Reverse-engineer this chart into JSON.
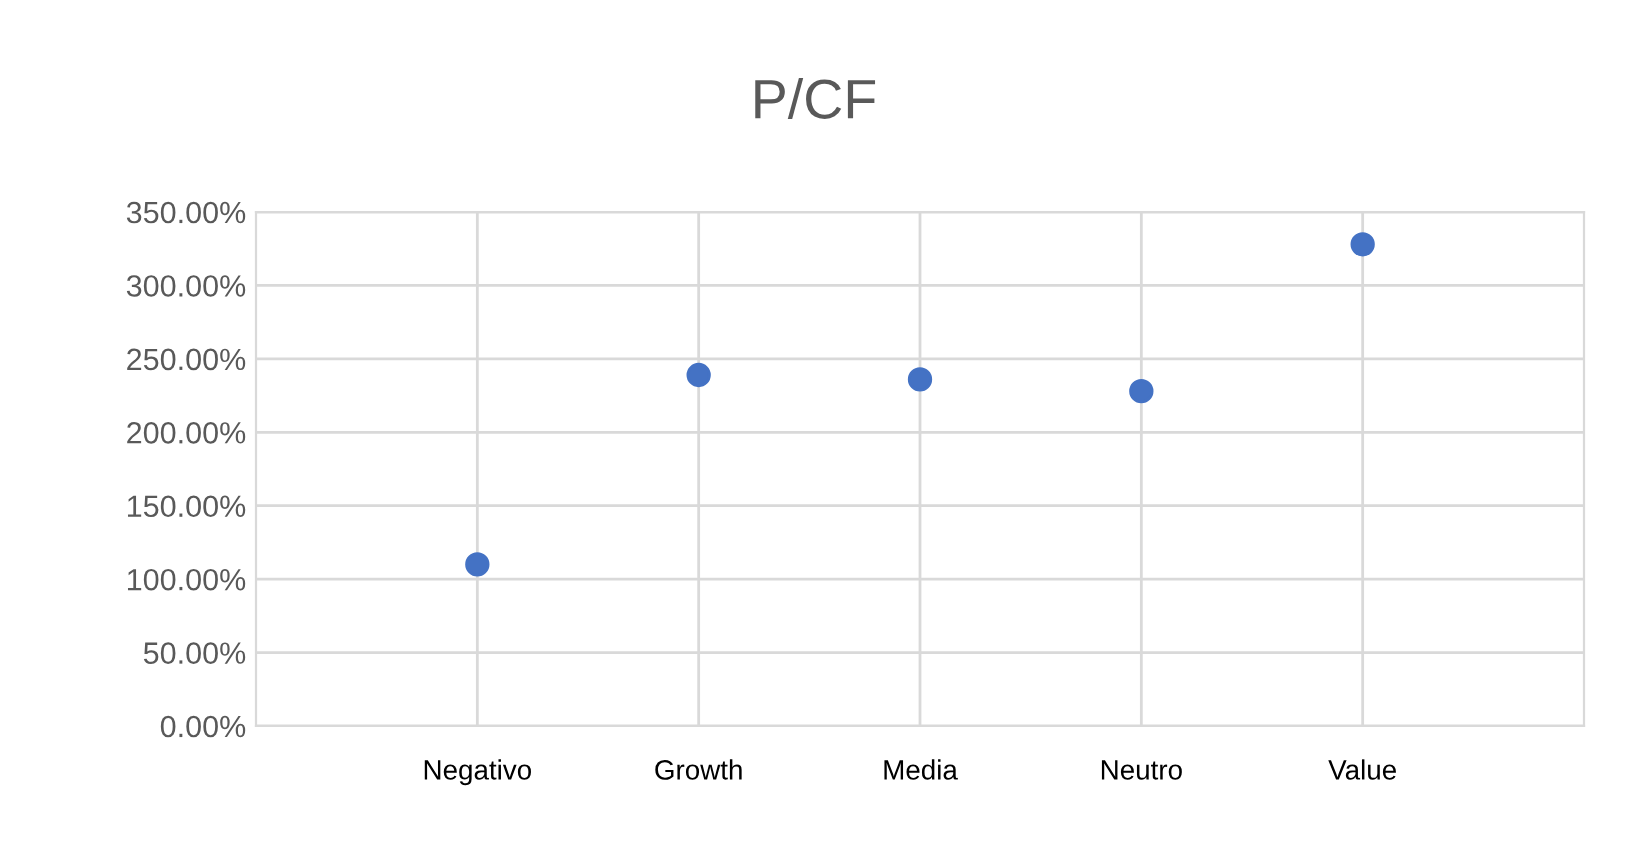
{
  "chart_data": {
    "type": "scatter",
    "title": "P/CF",
    "categories": [
      "Negativo",
      "Growth",
      "Media",
      "Neutro",
      "Value"
    ],
    "values": [
      110,
      239,
      236,
      228,
      328
    ],
    "color": "#4472c4",
    "marker": "circle",
    "grid": true,
    "legend": false,
    "ylim": [
      0,
      350
    ],
    "yticks": [
      {
        "value": 0,
        "label": "0.00%"
      },
      {
        "value": 50,
        "label": "50.00%"
      },
      {
        "value": 100,
        "label": "100.00%"
      },
      {
        "value": 150,
        "label": "150.00%"
      },
      {
        "value": 200,
        "label": "200.00%"
      },
      {
        "value": 250,
        "label": "250.00%"
      },
      {
        "value": 300,
        "label": "300.00%"
      },
      {
        "value": 350,
        "label": "350.00%"
      }
    ]
  }
}
